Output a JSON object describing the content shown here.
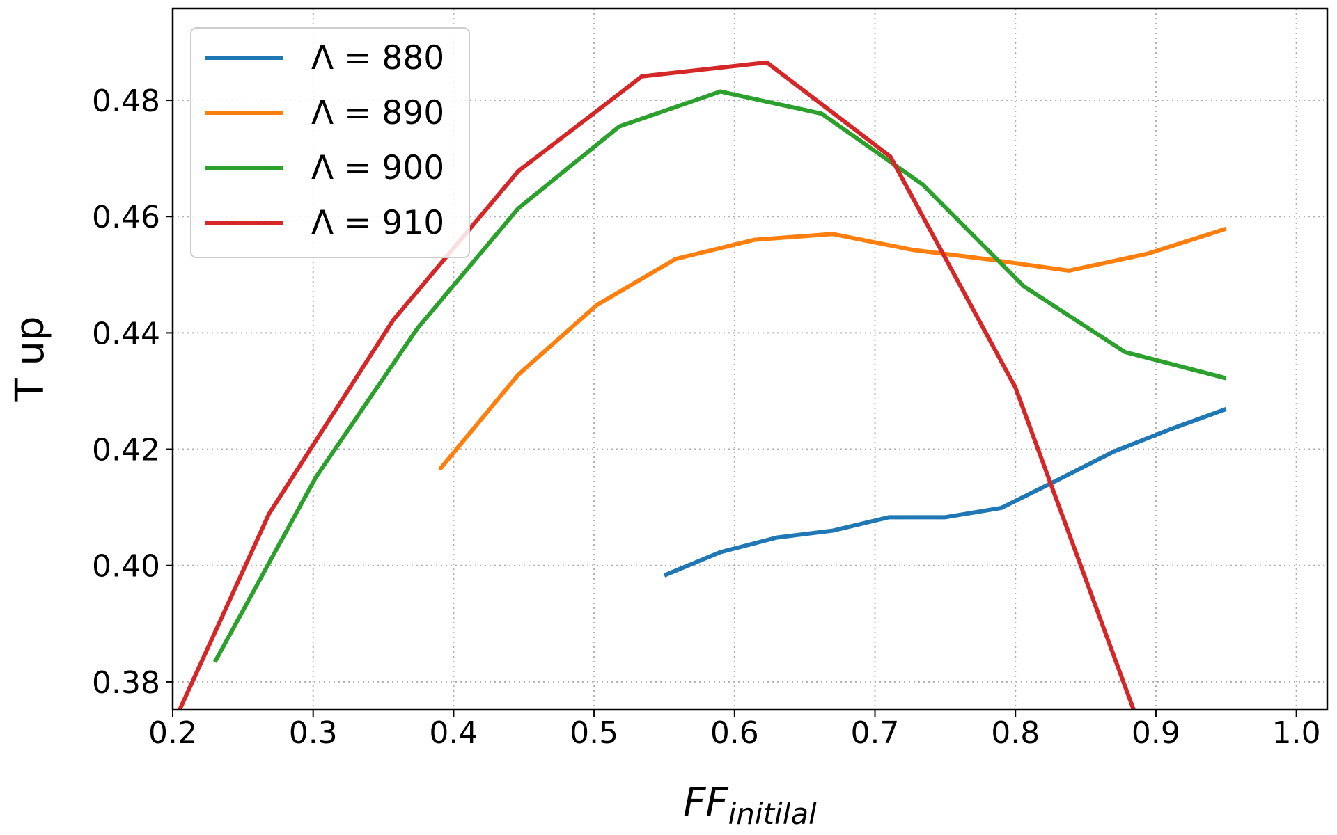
{
  "chart_data": {
    "type": "line",
    "x_label": "FF",
    "x_label_subscript": "initilal",
    "y_label": "T up",
    "xlim": [
      0.2,
      1.022
    ],
    "ylim": [
      0.3752,
      0.4958
    ],
    "xticks": [
      0.2,
      0.3,
      0.4,
      0.5,
      0.6,
      0.7,
      0.8,
      0.9,
      {
        "value": 1,
        "label": "1.0"
      }
    ],
    "yticks": [
      0.38,
      {
        "value": 0.4,
        "label": "0.40"
      },
      0.42,
      0.44,
      0.46,
      0.48
    ],
    "grid": true,
    "legend": "upper-left",
    "series": [
      {
        "name": "Λ = 880",
        "color": "#1f77b4",
        "x": [
          0.55,
          0.59,
          0.63,
          0.67,
          0.71,
          0.75,
          0.79,
          0.83,
          0.87,
          0.91,
          0.95
        ],
        "values": [
          0.3983,
          0.4023,
          0.4048,
          0.406,
          0.4083,
          0.4083,
          0.4099,
          0.4147,
          0.4196,
          0.4234,
          0.4269
        ]
      },
      {
        "name": "Λ = 890",
        "color": "#ff7f0e",
        "x": [
          0.39,
          0.446,
          0.502,
          0.558,
          0.614,
          0.67,
          0.726,
          0.782,
          0.838,
          0.894,
          0.95
        ],
        "values": [
          0.4165,
          0.4328,
          0.4448,
          0.4527,
          0.456,
          0.457,
          0.4543,
          0.4526,
          0.4507,
          0.4536,
          0.4579
        ]
      },
      {
        "name": "Λ = 900",
        "color": "#2ca02c",
        "x": [
          0.23,
          0.302,
          0.374,
          0.446,
          0.518,
          0.59,
          0.662,
          0.734,
          0.806,
          0.878,
          0.95
        ],
        "values": [
          0.3834,
          0.4152,
          0.4407,
          0.4614,
          0.4755,
          0.4815,
          0.4777,
          0.4655,
          0.448,
          0.4367,
          0.4322
        ]
      },
      {
        "name": "Λ = 910",
        "color": "#d62728",
        "x": [
          0.18,
          0.2686,
          0.357,
          0.446,
          0.534,
          0.623,
          0.711,
          0.8,
          0.889
        ],
        "values": [
          0.362,
          0.4089,
          0.4422,
          0.4678,
          0.4841,
          0.4865,
          0.4703,
          0.4306,
          0.372
        ]
      }
    ]
  }
}
